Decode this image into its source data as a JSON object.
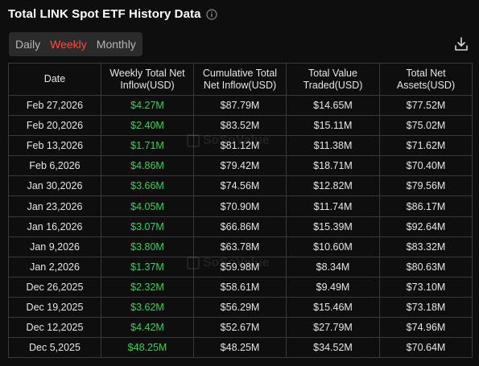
{
  "header": {
    "title": "Total LINK Spot ETF History Data",
    "info_icon": "info-circle-icon"
  },
  "tabs": [
    {
      "label": "Daily",
      "active": false
    },
    {
      "label": "Weekly",
      "active": true
    },
    {
      "label": "Monthly",
      "active": false
    }
  ],
  "toolbar": {
    "download_icon": "download-icon"
  },
  "table": {
    "headers": [
      "Date",
      "Weekly Total Net Inflow(USD)",
      "Cumulative Total Net Inflow(USD)",
      "Total Value Traded(USD)",
      "Total Net Assets(USD)"
    ],
    "rows": [
      [
        "Feb 27,2026",
        "$4.27M",
        "$87.79M",
        "$14.65M",
        "$77.52M"
      ],
      [
        "Feb 20,2026",
        "$2.40M",
        "$83.52M",
        "$15.11M",
        "$75.02M"
      ],
      [
        "Feb 13,2026",
        "$1.71M",
        "$81.12M",
        "$11.38M",
        "$71.62M"
      ],
      [
        "Feb 6,2026",
        "$4.86M",
        "$79.42M",
        "$18.71M",
        "$70.40M"
      ],
      [
        "Jan 30,2026",
        "$3.66M",
        "$74.56M",
        "$12.82M",
        "$79.56M"
      ],
      [
        "Jan 23,2026",
        "$4.05M",
        "$70.90M",
        "$11.74M",
        "$86.17M"
      ],
      [
        "Jan 16,2026",
        "$3.07M",
        "$66.86M",
        "$15.39M",
        "$92.64M"
      ],
      [
        "Jan 9,2026",
        "$3.80M",
        "$63.78M",
        "$10.60M",
        "$83.32M"
      ],
      [
        "Jan 2,2026",
        "$1.37M",
        "$59.98M",
        "$8.34M",
        "$80.63M"
      ],
      [
        "Dec 26,2025",
        "$2.32M",
        "$58.61M",
        "$9.49M",
        "$73.10M"
      ],
      [
        "Dec 19,2025",
        "$3.62M",
        "$56.29M",
        "$15.46M",
        "$73.18M"
      ],
      [
        "Dec 12,2025",
        "$4.42M",
        "$52.67M",
        "$27.79M",
        "$74.96M"
      ],
      [
        "Dec 5,2025",
        "$48.25M",
        "$48.25M",
        "$34.52M",
        "$70.64M"
      ]
    ]
  },
  "watermark": {
    "text": "SoSoValue"
  },
  "colors": {
    "positive": "#3fcf5a",
    "active_tab": "#ff4d3d",
    "border": "#3a3a3a",
    "background": "#0e0e0e"
  }
}
